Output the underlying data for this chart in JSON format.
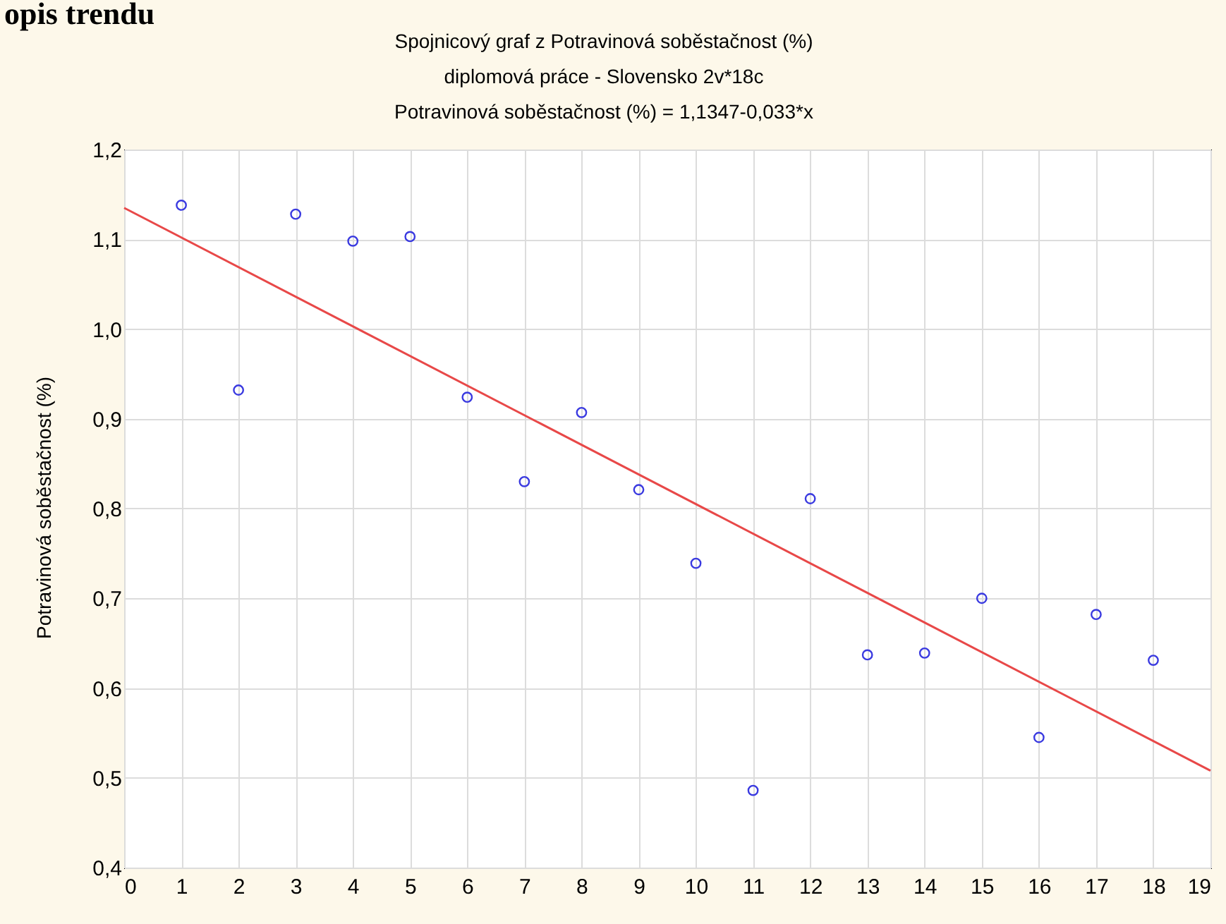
{
  "chart_data": {
    "type": "scatter",
    "title": "Spojnicový graf z Potravinová soběstačnost (%)",
    "subtitle": "diplomová práce - Slovensko 2v*18c",
    "annotations": [
      "opis trendu",
      "Potravinová soběstačnost (%) = 1,1347-0,033*x"
    ],
    "ylabel": "Potravinová soběstačnost (%)",
    "series": [
      {
        "color": "#3a3ae0",
        "x": [
          1,
          2,
          3,
          4,
          5,
          6,
          7,
          8,
          9,
          10,
          11,
          12,
          13,
          14,
          15,
          16,
          17,
          18
        ],
        "values": [
          1.138,
          0.932,
          1.128,
          1.098,
          1.103,
          0.924,
          0.83,
          0.907,
          0.821,
          0.739,
          0.486,
          0.811,
          0.637,
          0.639,
          0.7,
          0.545,
          0.682,
          0.631
        ]
      },
      {
        "type": "line",
        "marker": "none",
        "color": "#e84848",
        "x": [
          0,
          19
        ],
        "values": [
          1.135,
          0.508
        ]
      }
    ],
    "xlim": [
      0,
      19
    ],
    "xticks": [
      0,
      1,
      2,
      3,
      4,
      5,
      6,
      7,
      8,
      9,
      10,
      11,
      12,
      13,
      14,
      15,
      16,
      17,
      18,
      19
    ],
    "ylim": [
      0.4,
      1.2
    ],
    "yticks": [
      {
        "value": 0.4,
        "label": "0,4"
      },
      {
        "value": 0.5,
        "label": "0,5"
      },
      {
        "value": 0.6,
        "label": "0,6"
      },
      {
        "value": 0.7,
        "label": "0,7"
      },
      {
        "value": 0.8,
        "label": "0,8"
      },
      {
        "value": 0.9,
        "label": "0,9"
      },
      {
        "value": 1.0,
        "label": "1,0"
      },
      {
        "value": 1.1,
        "label": "1,1"
      },
      {
        "value": 1.2,
        "label": "1,2"
      }
    ],
    "grid": true,
    "marker": "circle",
    "line_style": "solid"
  }
}
